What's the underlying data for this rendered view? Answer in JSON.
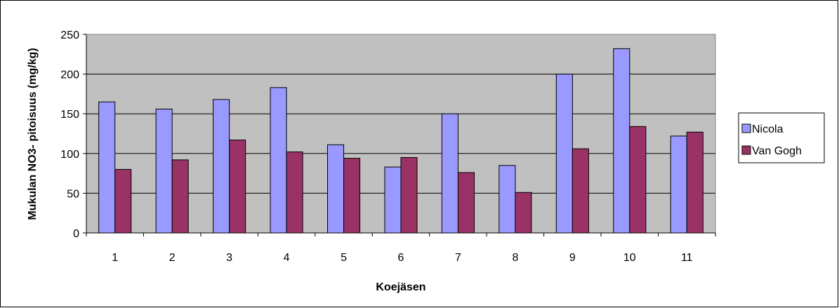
{
  "chart_data": {
    "type": "bar",
    "title": "",
    "xlabel": "Koejäsen",
    "ylabel": "Mukulan NO3- pitoisuus (mg/kg)",
    "categories": [
      "1",
      "2",
      "3",
      "4",
      "5",
      "6",
      "7",
      "8",
      "9",
      "10",
      "11"
    ],
    "series": [
      {
        "name": "Nicola",
        "color": "#9999ff",
        "values": [
          165,
          156,
          168,
          183,
          111,
          83,
          150,
          85,
          200,
          232,
          122
        ]
      },
      {
        "name": "Van Gogh",
        "color": "#993366",
        "values": [
          80,
          92,
          117,
          102,
          94,
          95,
          76,
          51,
          106,
          134,
          127
        ]
      }
    ],
    "ylim": [
      0,
      250
    ],
    "yticks": [
      "0",
      "50",
      "100",
      "150",
      "200",
      "250"
    ],
    "grid": true,
    "legend_position": "right",
    "plot_background": "#c0c0c0"
  }
}
